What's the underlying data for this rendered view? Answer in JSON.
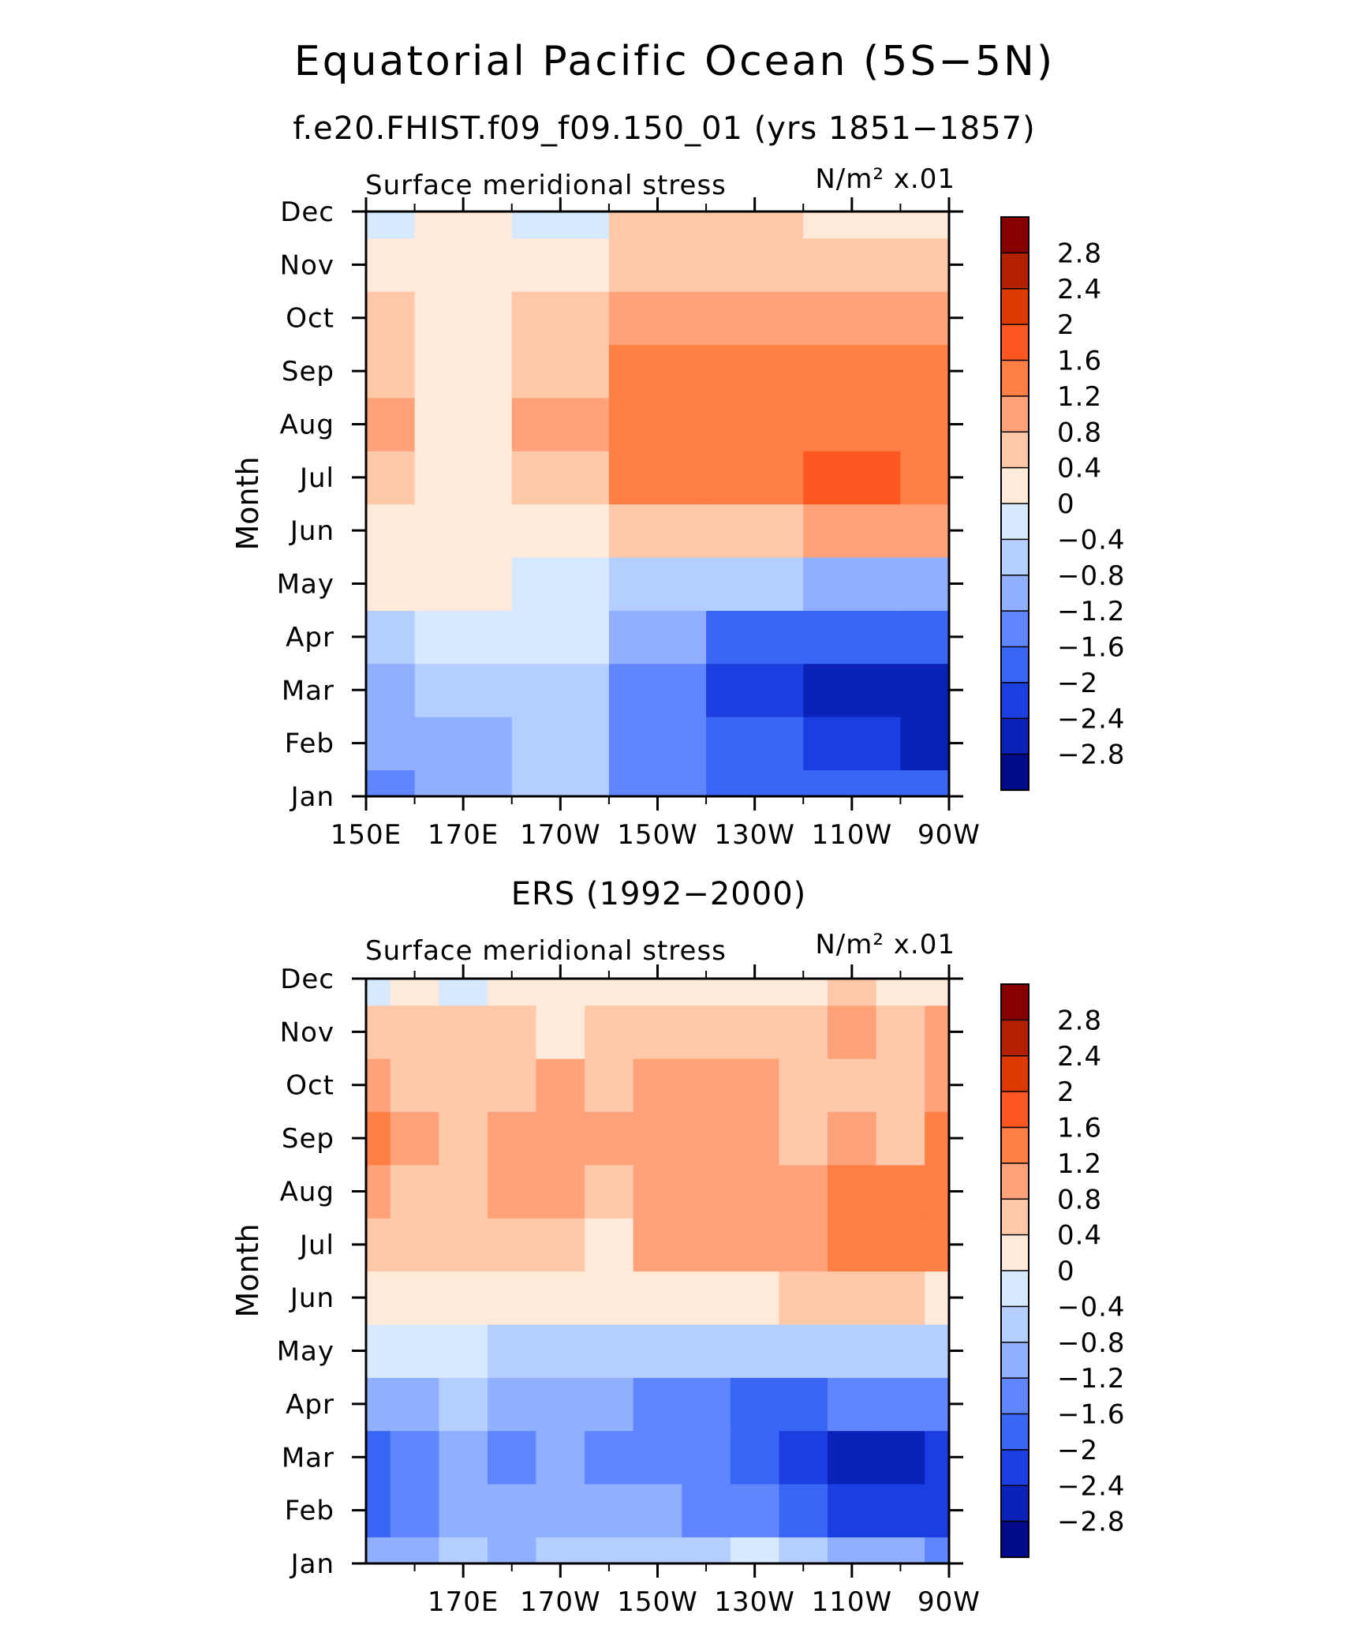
{
  "title": "Equatorial Pacific Ocean (5S−5N)",
  "colorscale": {
    "levels": [
      "2.8",
      "2.4",
      "2",
      "1.6",
      "1.2",
      "0.8",
      "0.4",
      "0",
      "−0.4",
      "−0.8",
      "−1.2",
      "−1.6",
      "−2",
      "−2.4",
      "−2.8"
    ],
    "colors": [
      "#860000",
      "#b32000",
      "#dd3a00",
      "#ff5722",
      "#ff7f45",
      "#ffa27a",
      "#ffc8a8",
      "#ffe9d8",
      "#d7e9ff",
      "#b4ceff",
      "#90b0ff",
      "#5f86ff",
      "#3a66f5",
      "#1b3ee0",
      "#0a22b8",
      "#000a8a"
    ]
  },
  "chart_data": [
    {
      "type": "heatmap",
      "subtitle": "f.e20.FHIST.f09_f09.150_01 (yrs 1851−1857)",
      "left_label": "Surface meridional stress",
      "units": "N/m² x.01",
      "ylabel": "Month",
      "y_categories": [
        "Jan",
        "Feb",
        "Mar",
        "Apr",
        "May",
        "Jun",
        "Jul",
        "Aug",
        "Sep",
        "Oct",
        "Nov",
        "Dec"
      ],
      "x_tick_labels": [
        "150E",
        "170E",
        "170W",
        "150W",
        "130W",
        "110W",
        "90W"
      ],
      "x_tick_values": [
        150,
        170,
        190,
        210,
        230,
        250,
        270
      ],
      "xlim": [
        150,
        270
      ],
      "x_grid": [
        150,
        170,
        190,
        210,
        230,
        250,
        270
      ],
      "values": [
        [
          -1.3,
          -1.0,
          -0.8,
          -1.4,
          -1.7,
          -2.0,
          -1.8
        ],
        [
          -1.2,
          -0.9,
          -0.8,
          -1.5,
          -2.0,
          -2.4,
          -2.5
        ],
        [
          -1.0,
          -0.5,
          -0.6,
          -1.5,
          -2.2,
          -2.6,
          -2.7
        ],
        [
          -0.5,
          -0.4,
          -0.4,
          -1.1,
          -1.8,
          -2.0,
          -2.0
        ],
        [
          0.1,
          0.1,
          -0.2,
          -0.5,
          -0.8,
          -1.0,
          -1.1
        ],
        [
          0.3,
          0.2,
          0.1,
          0.4,
          0.6,
          0.8,
          0.9
        ],
        [
          0.7,
          0.3,
          0.6,
          1.2,
          1.5,
          1.7,
          1.5
        ],
        [
          0.8,
          0.3,
          0.8,
          1.4,
          1.5,
          1.5,
          1.3
        ],
        [
          0.6,
          0.3,
          0.7,
          1.3,
          1.4,
          1.5,
          1.3
        ],
        [
          0.4,
          0.3,
          0.5,
          1.0,
          1.0,
          1.0,
          0.9
        ],
        [
          0.1,
          0.3,
          0.3,
          0.5,
          0.5,
          0.4,
          0.5
        ],
        [
          -0.1,
          0.2,
          -0.1,
          0.4,
          0.4,
          0.2,
          0.3
        ]
      ]
    },
    {
      "type": "heatmap",
      "subtitle": "ERS (1992−2000)",
      "left_label": "Surface meridional stress",
      "units": "N/m² x.01",
      "ylabel": "Month",
      "y_categories": [
        "Jan",
        "Feb",
        "Mar",
        "Apr",
        "May",
        "Jun",
        "Jul",
        "Aug",
        "Sep",
        "Oct",
        "Nov",
        "Dec"
      ],
      "x_tick_labels": [
        "170E",
        "170W",
        "150W",
        "130W",
        "110W",
        "90W"
      ],
      "x_tick_values": [
        170,
        190,
        210,
        230,
        250,
        270
      ],
      "xlim": [
        150,
        270
      ],
      "x_grid": [
        150,
        160,
        170,
        180,
        190,
        200,
        210,
        220,
        230,
        240,
        250,
        260,
        270
      ],
      "values": [
        [
          -1.2,
          -1.0,
          -0.6,
          -0.9,
          -0.8,
          -0.7,
          -0.6,
          -0.5,
          -0.4,
          -0.6,
          -0.9,
          -1.1,
          -1.4
        ],
        [
          -1.8,
          -1.3,
          -1.0,
          -1.2,
          -0.9,
          -1.1,
          -1.2,
          -1.3,
          -1.5,
          -1.8,
          -2.1,
          -2.3,
          -2.3
        ],
        [
          -2.0,
          -1.6,
          -1.0,
          -1.3,
          -1.0,
          -1.3,
          -1.4,
          -1.6,
          -2.0,
          -2.3,
          -2.5,
          -2.6,
          -2.4
        ],
        [
          -1.0,
          -1.0,
          -0.8,
          -1.0,
          -1.2,
          -1.1,
          -1.6,
          -1.5,
          -1.8,
          -1.7,
          -1.5,
          -1.4,
          -1.4
        ],
        [
          -0.2,
          -0.4,
          -0.3,
          -0.5,
          -0.5,
          -0.5,
          -0.6,
          -0.8,
          -0.6,
          -0.7,
          -0.5,
          -0.6,
          -0.5
        ],
        [
          0.3,
          0.2,
          0.2,
          0.3,
          0.1,
          0.3,
          0.2,
          0.3,
          0.3,
          0.4,
          0.5,
          0.4,
          0.3
        ],
        [
          0.7,
          0.5,
          0.4,
          0.6,
          0.6,
          0.3,
          0.8,
          0.8,
          0.9,
          0.8,
          1.3,
          1.3,
          1.2
        ],
        [
          0.9,
          0.6,
          0.6,
          0.9,
          0.8,
          0.6,
          0.9,
          1.0,
          0.9,
          0.8,
          1.4,
          1.3,
          1.3
        ],
        [
          1.4,
          0.8,
          0.5,
          0.9,
          1.0,
          0.9,
          1.0,
          0.9,
          0.9,
          0.7,
          0.8,
          0.7,
          1.2
        ],
        [
          0.8,
          0.7,
          0.6,
          0.6,
          0.9,
          0.7,
          0.8,
          0.9,
          0.8,
          0.6,
          0.6,
          0.6,
          1.1
        ],
        [
          0.4,
          0.6,
          0.5,
          0.4,
          0.3,
          0.5,
          0.4,
          0.5,
          0.4,
          0.6,
          0.8,
          0.6,
          0.8
        ],
        [
          -0.1,
          0.0,
          -0.1,
          0.2,
          0.1,
          0.2,
          0.1,
          0.3,
          0.2,
          0.3,
          0.4,
          0.3,
          0.2
        ]
      ]
    }
  ]
}
